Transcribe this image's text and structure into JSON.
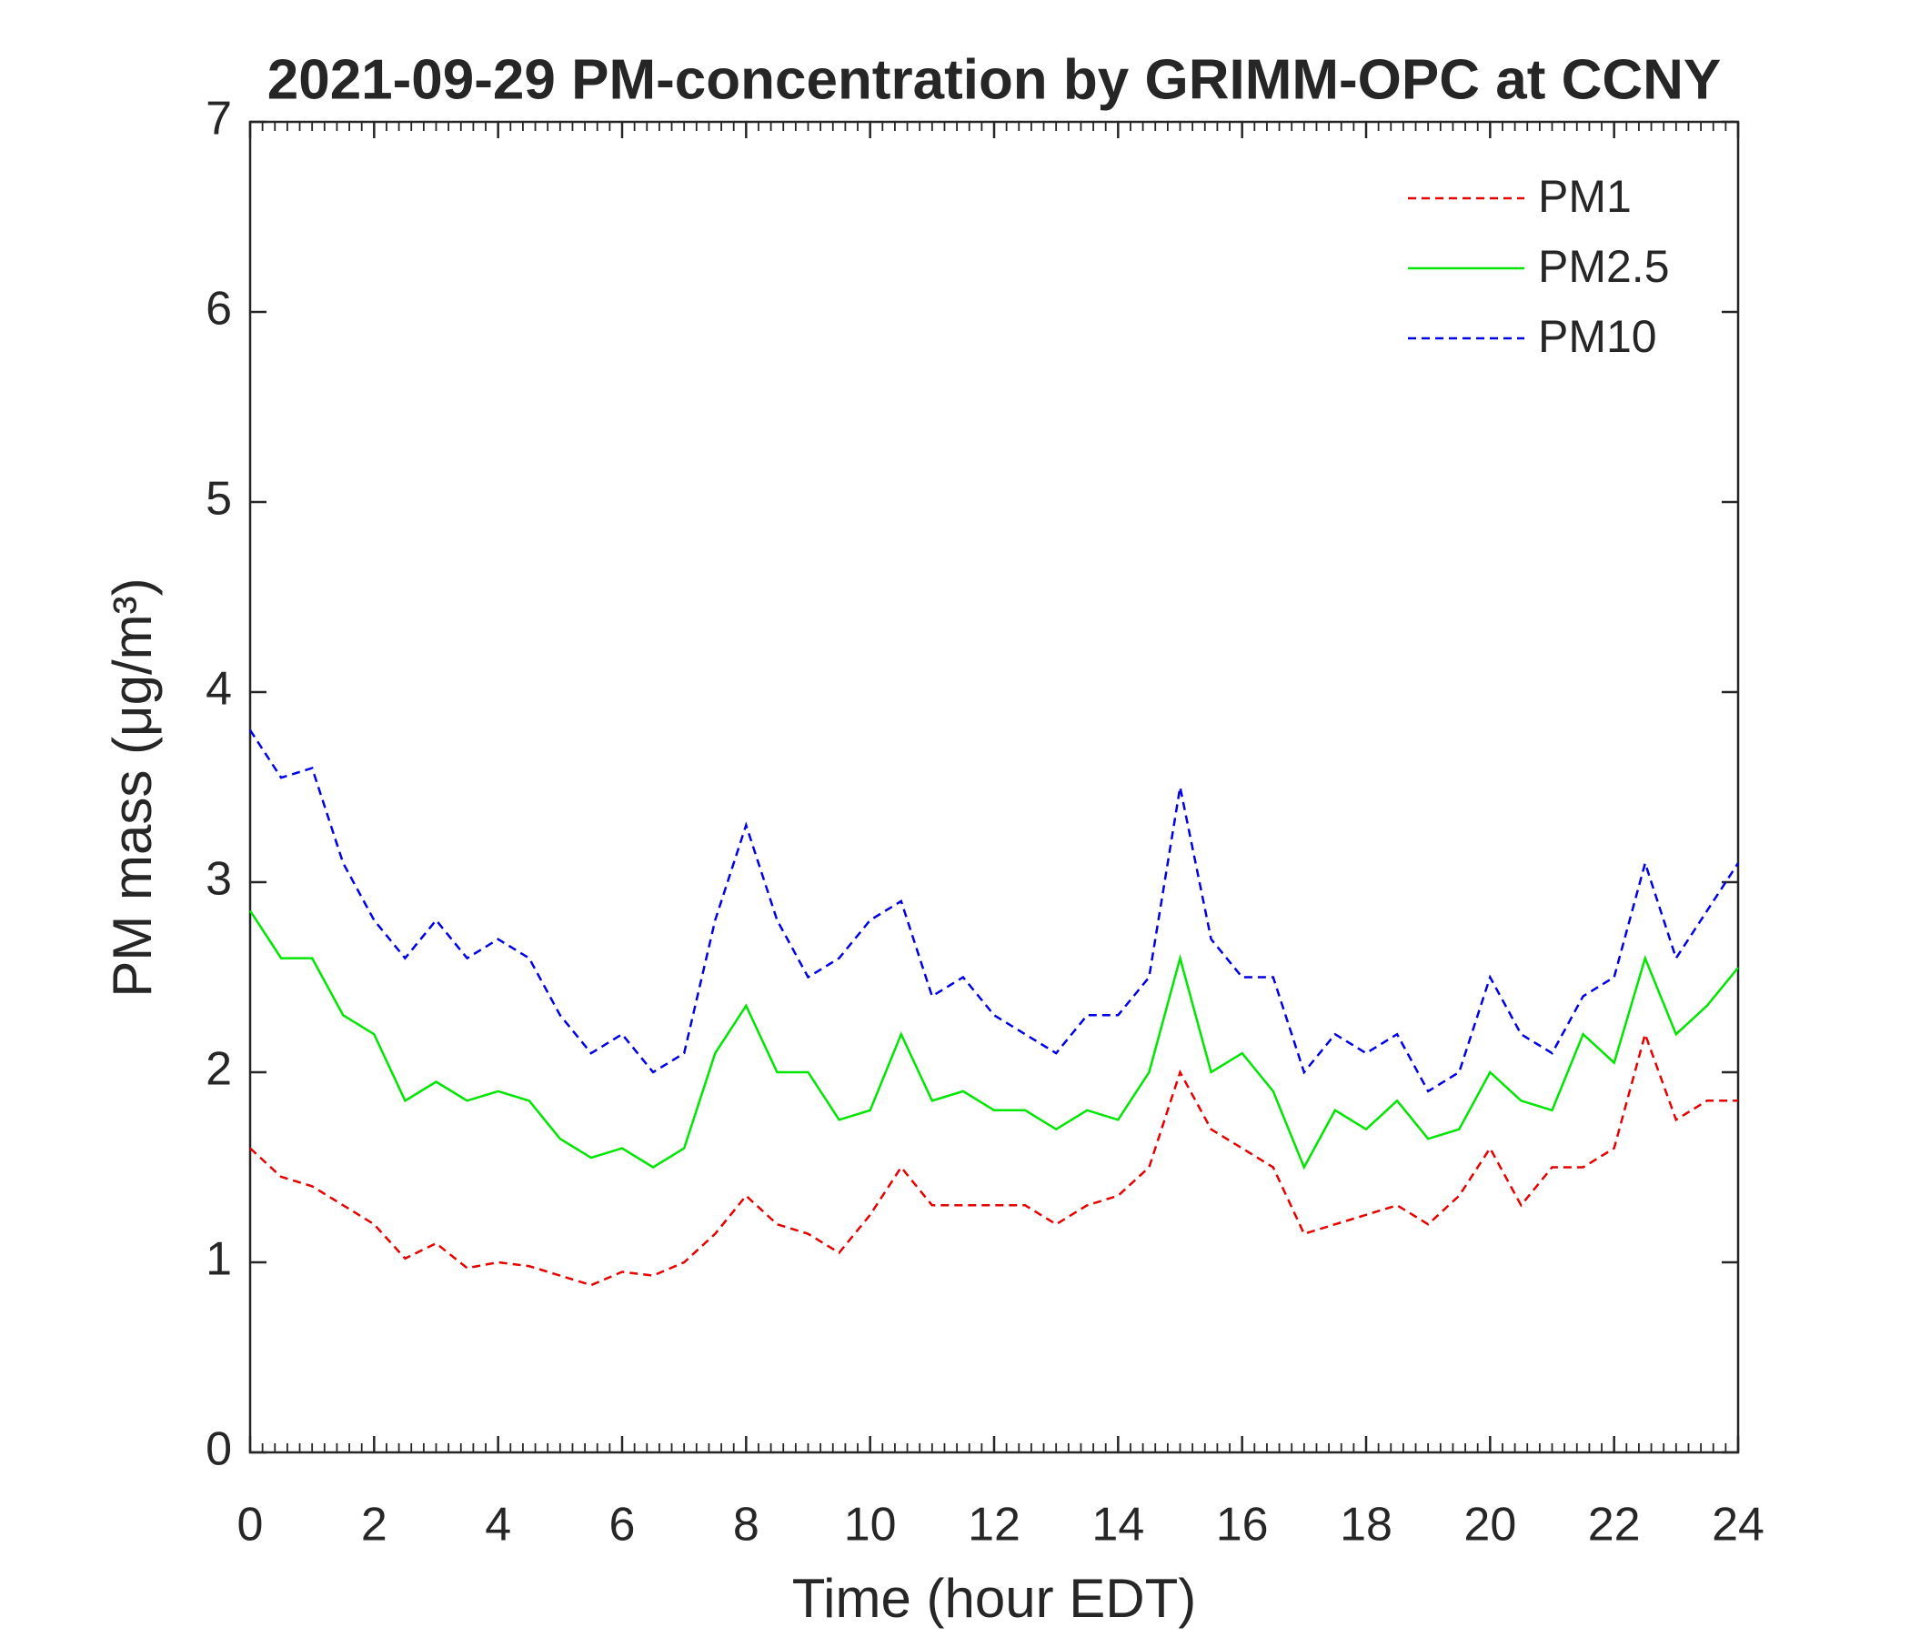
{
  "chart_data": {
    "type": "line",
    "title": "2021-09-29 PM-concentration by GRIMM-OPC at CCNY",
    "x_label": "Time (hour EDT)",
    "y_label": "PM mass (μg/m³)",
    "x": [
      0,
      0.5,
      1,
      1.5,
      2,
      2.5,
      3,
      3.5,
      4,
      4.5,
      5,
      5.5,
      6,
      6.5,
      7,
      7.5,
      8,
      8.5,
      9,
      9.5,
      10,
      10.5,
      11,
      11.5,
      12,
      12.5,
      13,
      13.5,
      14,
      14.5,
      15,
      15.5,
      16,
      16.5,
      17,
      17.5,
      18,
      18.5,
      19,
      19.5,
      20,
      20.5,
      21,
      21.5,
      22,
      22.5,
      23,
      23.5,
      24
    ],
    "series": [
      {
        "name": "PM1",
        "color": "#e60000",
        "line_style": "dashed",
        "values": [
          1.6,
          1.45,
          1.4,
          1.3,
          1.2,
          1.02,
          1.1,
          0.97,
          1.0,
          0.98,
          0.93,
          0.88,
          0.95,
          0.93,
          1.0,
          1.15,
          1.35,
          1.2,
          1.15,
          1.05,
          1.25,
          1.5,
          1.3,
          1.3,
          1.3,
          1.3,
          1.2,
          1.3,
          1.35,
          1.5,
          2.0,
          1.7,
          1.6,
          1.5,
          1.15,
          1.2,
          1.25,
          1.3,
          1.2,
          1.35,
          1.6,
          1.3,
          1.5,
          1.5,
          1.6,
          2.2,
          1.75,
          1.85,
          1.85
        ]
      },
      {
        "name": "PM2.5",
        "color": "#00e600",
        "line_style": "solid",
        "values": [
          2.85,
          2.6,
          2.6,
          2.3,
          2.2,
          1.85,
          1.95,
          1.85,
          1.9,
          1.85,
          1.65,
          1.55,
          1.6,
          1.5,
          1.6,
          2.1,
          2.35,
          2.0,
          2.0,
          1.75,
          1.8,
          2.2,
          1.85,
          1.9,
          1.8,
          1.8,
          1.7,
          1.8,
          1.75,
          2.0,
          2.6,
          2.0,
          2.1,
          1.9,
          1.5,
          1.8,
          1.7,
          1.85,
          1.65,
          1.7,
          2.0,
          1.85,
          1.8,
          2.2,
          2.05,
          2.6,
          2.2,
          2.35,
          2.55
        ]
      },
      {
        "name": "PM10",
        "color": "#0000e6",
        "line_style": "dashed",
        "values": [
          3.8,
          3.55,
          3.6,
          3.1,
          2.8,
          2.6,
          2.8,
          2.6,
          2.7,
          2.6,
          2.3,
          2.1,
          2.2,
          2.0,
          2.1,
          2.8,
          3.3,
          2.8,
          2.5,
          2.6,
          2.8,
          2.9,
          2.4,
          2.5,
          2.3,
          2.2,
          2.1,
          2.3,
          2.3,
          2.5,
          3.5,
          2.7,
          2.5,
          2.5,
          2.0,
          2.2,
          2.1,
          2.2,
          1.9,
          2.0,
          2.5,
          2.2,
          2.1,
          2.4,
          2.5,
          3.1,
          2.6,
          2.85,
          3.1
        ]
      }
    ],
    "xlim": [
      0,
      24
    ],
    "xticks": [
      0,
      2,
      4,
      6,
      8,
      10,
      12,
      14,
      16,
      18,
      20,
      22,
      24
    ],
    "ylim": [
      0,
      7
    ],
    "yticks": [
      0,
      1,
      2,
      3,
      4,
      5,
      6,
      7
    ],
    "legend": "top-right",
    "grid": false
  }
}
